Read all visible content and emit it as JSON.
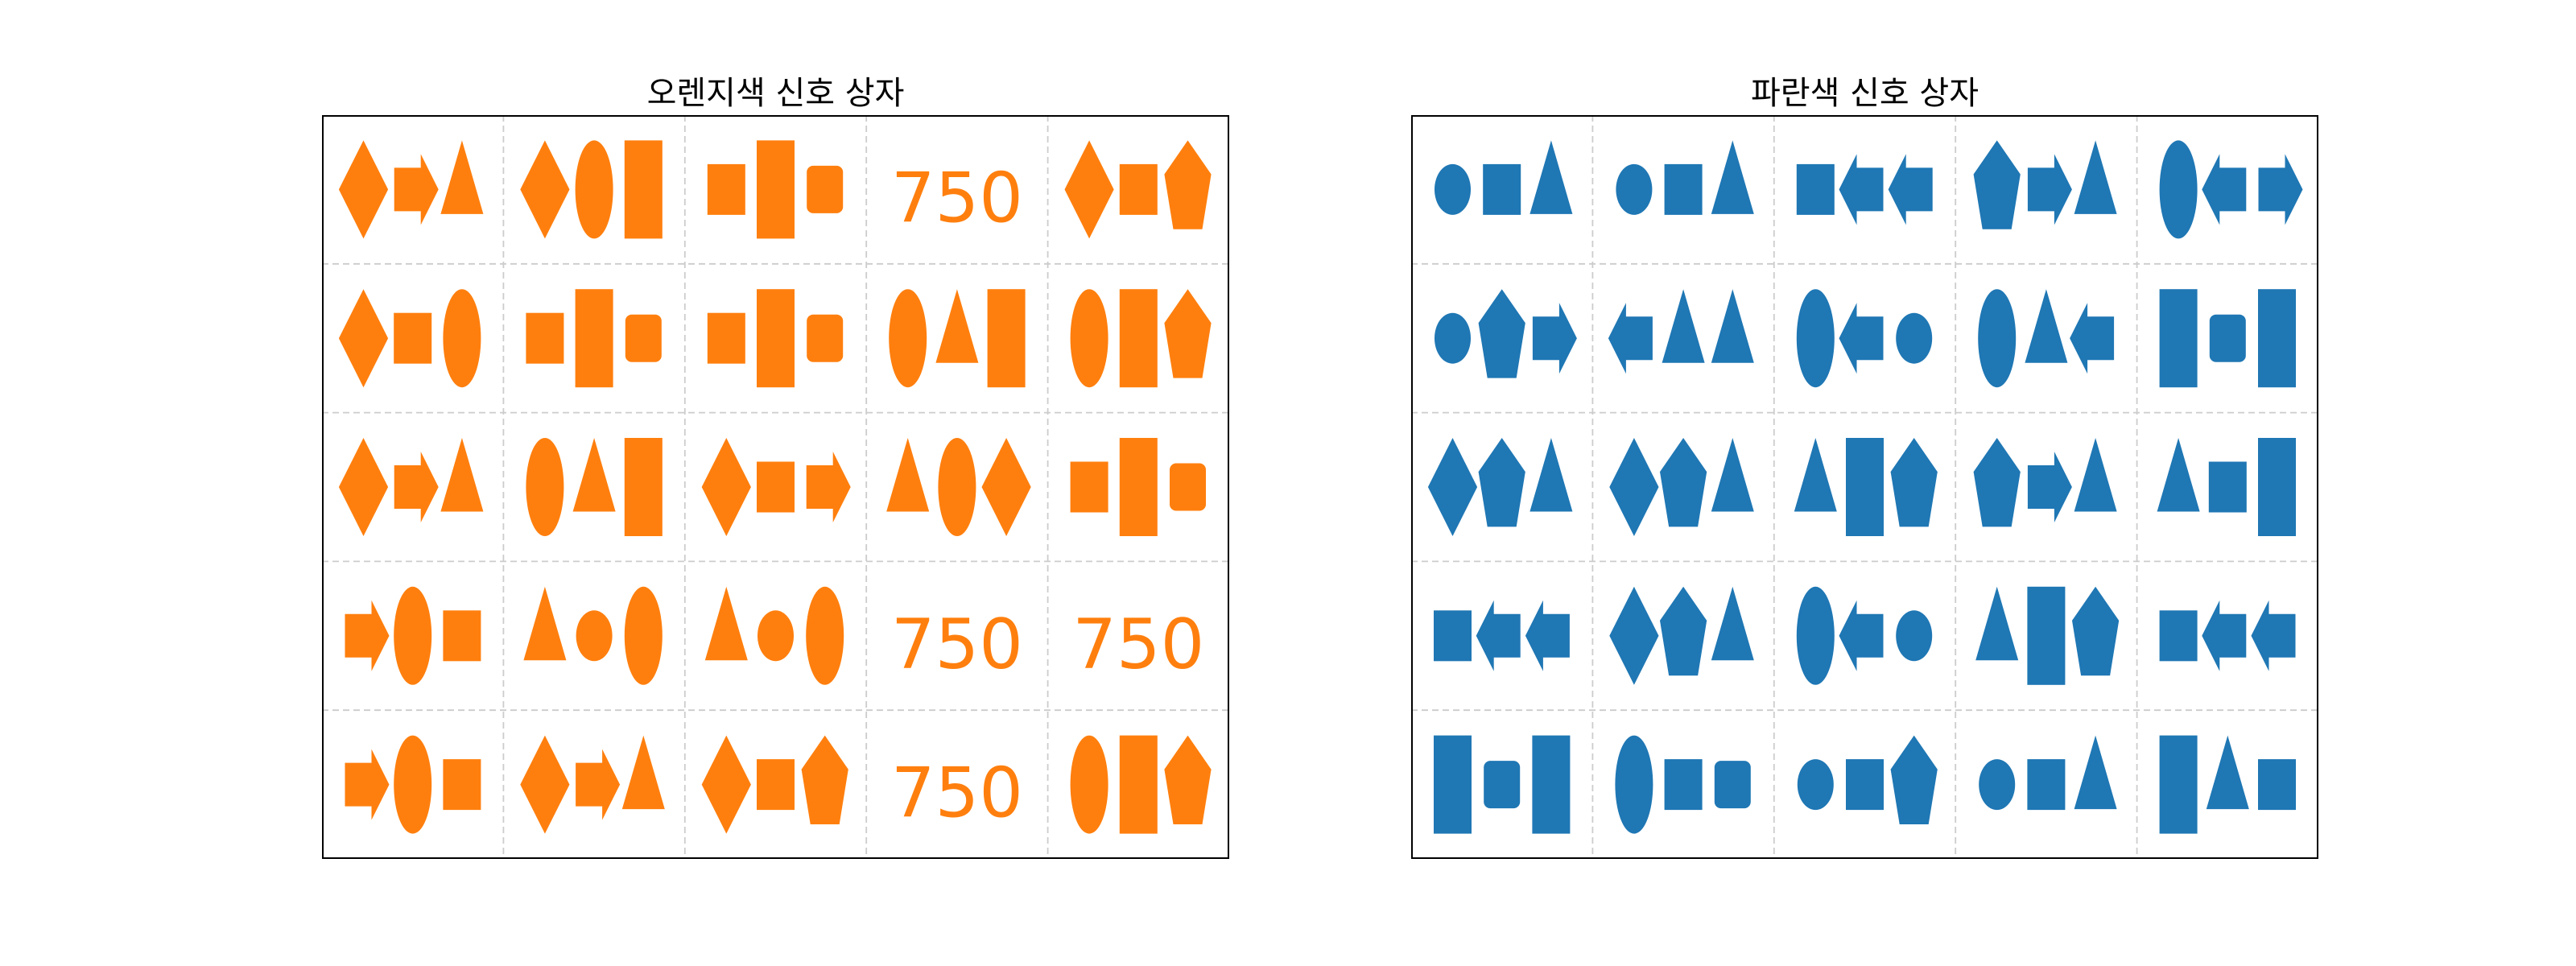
{
  "colors": {
    "orange": "#ff7f0e",
    "blue": "#1f77b4"
  },
  "panels": [
    {
      "title": "오렌지색 신호 상자",
      "color": "#ff7f0e",
      "rows": [
        [
          {
            "shapes": [
              "diamond",
              "arrow-right",
              "triangle"
            ]
          },
          {
            "shapes": [
              "diamond",
              "ellipse",
              "tall-rectangle"
            ]
          },
          {
            "shapes": [
              "square",
              "tall-rectangle",
              "rounded-square"
            ]
          },
          {
            "text": "750"
          },
          {
            "shapes": [
              "diamond",
              "square",
              "pentagon"
            ]
          }
        ],
        [
          {
            "shapes": [
              "diamond",
              "square",
              "ellipse"
            ]
          },
          {
            "shapes": [
              "square",
              "tall-rectangle",
              "rounded-square"
            ]
          },
          {
            "shapes": [
              "square",
              "tall-rectangle",
              "rounded-square"
            ]
          },
          {
            "shapes": [
              "ellipse",
              "triangle",
              "tall-rectangle"
            ]
          },
          {
            "shapes": [
              "ellipse",
              "tall-rectangle",
              "pentagon"
            ]
          }
        ],
        [
          {
            "shapes": [
              "diamond",
              "arrow-right",
              "triangle"
            ]
          },
          {
            "shapes": [
              "ellipse",
              "triangle",
              "tall-rectangle"
            ]
          },
          {
            "shapes": [
              "diamond",
              "square",
              "arrow-right"
            ]
          },
          {
            "shapes": [
              "triangle",
              "ellipse",
              "diamond"
            ]
          },
          {
            "shapes": [
              "square",
              "tall-rectangle",
              "rounded-square"
            ]
          }
        ],
        [
          {
            "shapes": [
              "arrow-right",
              "ellipse",
              "square"
            ]
          },
          {
            "shapes": [
              "triangle",
              "circle",
              "ellipse"
            ]
          },
          {
            "shapes": [
              "triangle",
              "circle",
              "ellipse"
            ]
          },
          {
            "text": "750"
          },
          {
            "text": "750"
          }
        ],
        [
          {
            "shapes": [
              "arrow-right",
              "ellipse",
              "square"
            ]
          },
          {
            "shapes": [
              "diamond",
              "arrow-right",
              "triangle"
            ]
          },
          {
            "shapes": [
              "diamond",
              "square",
              "pentagon"
            ]
          },
          {
            "text": "750"
          },
          {
            "shapes": [
              "ellipse",
              "tall-rectangle",
              "pentagon"
            ]
          }
        ]
      ]
    },
    {
      "title": "파란색 신호 상자",
      "color": "#1f77b4",
      "rows": [
        [
          {
            "shapes": [
              "circle",
              "square",
              "triangle"
            ]
          },
          {
            "shapes": [
              "circle",
              "square",
              "triangle"
            ]
          },
          {
            "shapes": [
              "square",
              "arrow-left",
              "arrow-left"
            ]
          },
          {
            "shapes": [
              "pentagon",
              "arrow-right",
              "triangle"
            ]
          },
          {
            "shapes": [
              "ellipse",
              "arrow-left",
              "arrow-right"
            ]
          }
        ],
        [
          {
            "shapes": [
              "circle",
              "pentagon",
              "arrow-right"
            ]
          },
          {
            "shapes": [
              "arrow-left",
              "triangle",
              "triangle"
            ]
          },
          {
            "shapes": [
              "ellipse",
              "arrow-left",
              "circle"
            ]
          },
          {
            "shapes": [
              "ellipse",
              "triangle",
              "arrow-left"
            ]
          },
          {
            "shapes": [
              "tall-rectangle",
              "rounded-square",
              "tall-rectangle"
            ]
          }
        ],
        [
          {
            "shapes": [
              "diamond",
              "pentagon",
              "triangle"
            ]
          },
          {
            "shapes": [
              "diamond",
              "pentagon",
              "triangle"
            ]
          },
          {
            "shapes": [
              "triangle",
              "tall-rectangle",
              "pentagon"
            ]
          },
          {
            "shapes": [
              "pentagon",
              "arrow-right",
              "triangle"
            ]
          },
          {
            "shapes": [
              "triangle",
              "square",
              "tall-rectangle"
            ]
          }
        ],
        [
          {
            "shapes": [
              "square",
              "arrow-left",
              "arrow-left"
            ]
          },
          {
            "shapes": [
              "diamond",
              "pentagon",
              "triangle"
            ]
          },
          {
            "shapes": [
              "ellipse",
              "arrow-left",
              "circle"
            ]
          },
          {
            "shapes": [
              "triangle",
              "tall-rectangle",
              "pentagon"
            ]
          },
          {
            "shapes": [
              "square",
              "arrow-left",
              "arrow-left"
            ]
          }
        ],
        [
          {
            "shapes": [
              "tall-rectangle",
              "rounded-square",
              "tall-rectangle"
            ]
          },
          {
            "shapes": [
              "ellipse",
              "square",
              "rounded-square"
            ]
          },
          {
            "shapes": [
              "circle",
              "square",
              "pentagon"
            ]
          },
          {
            "shapes": [
              "circle",
              "square",
              "triangle"
            ]
          },
          {
            "shapes": [
              "tall-rectangle",
              "triangle",
              "square"
            ]
          }
        ]
      ]
    }
  ]
}
